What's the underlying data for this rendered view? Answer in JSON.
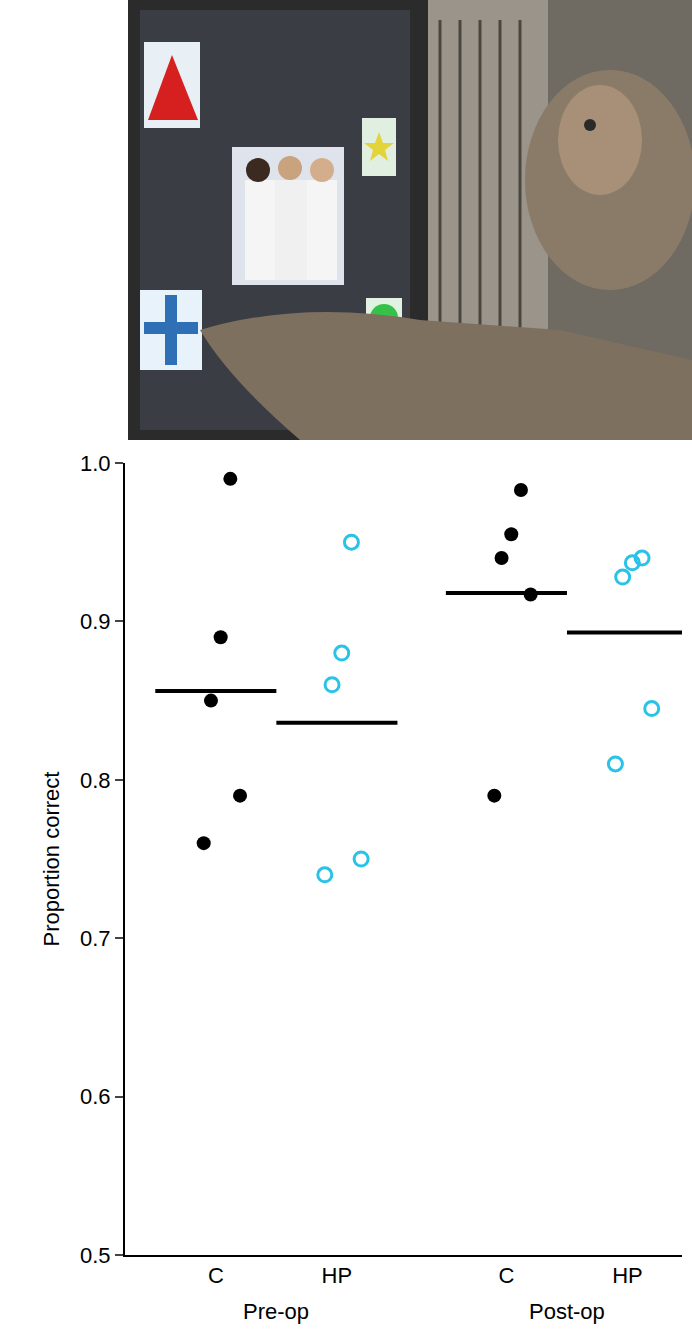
{
  "chart_data": {
    "type": "scatter",
    "y_label": "Proportion correct",
    "ylim": [
      0.5,
      1.0
    ],
    "yticks": [
      0.5,
      0.6,
      0.7,
      0.8,
      0.9,
      {
        "value": 1.0,
        "label": "1.0"
      }
    ],
    "grid": false,
    "groups": [
      {
        "name": "Pre-op",
        "categories": [
          {
            "name": "C",
            "color": "#000000",
            "marker": "filled",
            "values": [
              0.99,
              0.89,
              0.85,
              0.79,
              0.76
            ],
            "mean": 0.856
          },
          {
            "name": "HP",
            "color": "#29c3e8",
            "marker": "open",
            "values": [
              0.95,
              0.88,
              0.86,
              0.75,
              0.74
            ],
            "mean": 0.836
          }
        ]
      },
      {
        "name": "Post-op",
        "categories": [
          {
            "name": "C",
            "color": "#000000",
            "marker": "filled",
            "values": [
              0.983,
              0.955,
              0.94,
              0.917,
              0.79
            ],
            "mean": 0.918
          },
          {
            "name": "HP",
            "color": "#29c3e8",
            "marker": "open",
            "values": [
              0.94,
              0.937,
              0.928,
              0.845,
              0.81
            ],
            "mean": 0.893
          }
        ]
      }
    ]
  }
}
